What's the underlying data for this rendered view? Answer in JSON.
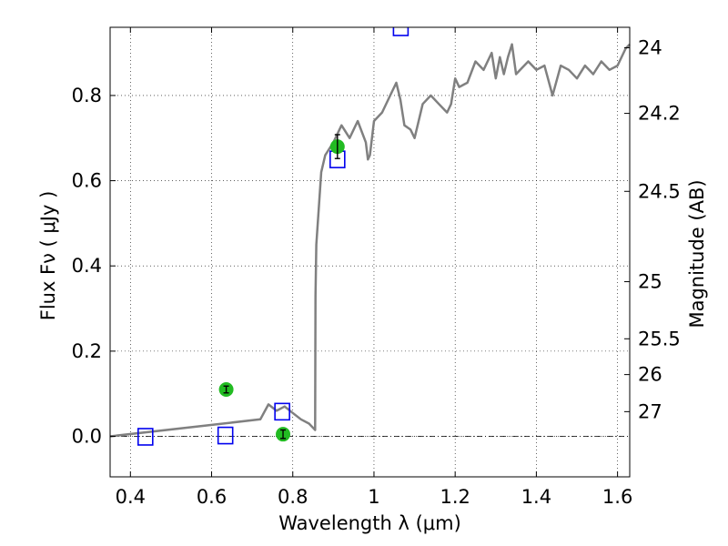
{
  "chart_data": {
    "type": "line",
    "xlabel": "Wavelength  λ (μm)",
    "ylabel": "Flux  Fν ( μJy )",
    "ylabel_right": "Magnitude (AB)",
    "xlim": [
      0.35,
      1.63
    ],
    "ylim": [
      -0.095,
      0.96
    ],
    "grid": true,
    "x_ticks": [
      {
        "value": 0.4,
        "label": "0.4"
      },
      {
        "value": 0.6,
        "label": "0.6"
      },
      {
        "value": 0.8,
        "label": "0.8"
      },
      {
        "value": 1.0,
        "label": "1"
      },
      {
        "value": 1.2,
        "label": "1.2"
      },
      {
        "value": 1.4,
        "label": "1.4"
      },
      {
        "value": 1.6,
        "label": "1.6"
      }
    ],
    "y_ticks": [
      {
        "value": 0.0,
        "label": "0.0"
      },
      {
        "value": 0.2,
        "label": "0.2"
      },
      {
        "value": 0.4,
        "label": "0.4"
      },
      {
        "value": 0.6,
        "label": "0.6"
      },
      {
        "value": 0.8,
        "label": "0.8"
      }
    ],
    "right_ticks": [
      {
        "flux": 0.912,
        "label": "24"
      },
      {
        "flux": 0.758,
        "label": "24.2"
      },
      {
        "flux": 0.575,
        "label": "24.5"
      },
      {
        "flux": 0.363,
        "label": "25"
      },
      {
        "flux": 0.229,
        "label": "25.5"
      },
      {
        "flux": 0.145,
        "label": "26"
      },
      {
        "flux": 0.058,
        "label": "27"
      }
    ],
    "model_spectrum": {
      "color": "#808080",
      "x": [
        0.35,
        0.72,
        0.74,
        0.76,
        0.78,
        0.8,
        0.82,
        0.84,
        0.855,
        0.856,
        0.858,
        0.87,
        0.88,
        0.9,
        0.92,
        0.94,
        0.96,
        0.98,
        0.985,
        0.99,
        1.0,
        1.02,
        1.04,
        1.055,
        1.065,
        1.075,
        1.09,
        1.1,
        1.12,
        1.14,
        1.16,
        1.17,
        1.18,
        1.19,
        1.2,
        1.21,
        1.23,
        1.25,
        1.27,
        1.29,
        1.3,
        1.31,
        1.32,
        1.33,
        1.34,
        1.35,
        1.36,
        1.38,
        1.4,
        1.42,
        1.44,
        1.46,
        1.48,
        1.5,
        1.52,
        1.54,
        1.56,
        1.58,
        1.6,
        1.62,
        1.63
      ],
      "y": [
        0.0,
        0.04,
        0.075,
        0.06,
        0.07,
        0.055,
        0.04,
        0.03,
        0.015,
        0.33,
        0.45,
        0.62,
        0.66,
        0.69,
        0.73,
        0.7,
        0.74,
        0.69,
        0.65,
        0.66,
        0.74,
        0.76,
        0.8,
        0.83,
        0.79,
        0.73,
        0.72,
        0.7,
        0.78,
        0.8,
        0.78,
        0.77,
        0.76,
        0.78,
        0.84,
        0.82,
        0.83,
        0.88,
        0.86,
        0.9,
        0.84,
        0.89,
        0.85,
        0.89,
        0.92,
        0.85,
        0.86,
        0.88,
        0.86,
        0.87,
        0.8,
        0.87,
        0.86,
        0.84,
        0.87,
        0.85,
        0.88,
        0.86,
        0.87,
        0.91,
        0.92
      ]
    },
    "model_photometry": {
      "color": "#0000ee",
      "x": [
        0.437,
        0.634,
        0.774,
        0.91,
        1.066
      ],
      "y": [
        -0.001,
        0.002,
        0.058,
        0.65,
        0.96
      ]
    },
    "observed_photometry": {
      "color": "#22bb22",
      "x": [
        0.636,
        0.776,
        0.91
      ],
      "y": [
        0.11,
        0.005,
        0.68
      ],
      "yerr": [
        0.008,
        0.01,
        0.028
      ]
    },
    "reference_line_y": 0.0
  }
}
